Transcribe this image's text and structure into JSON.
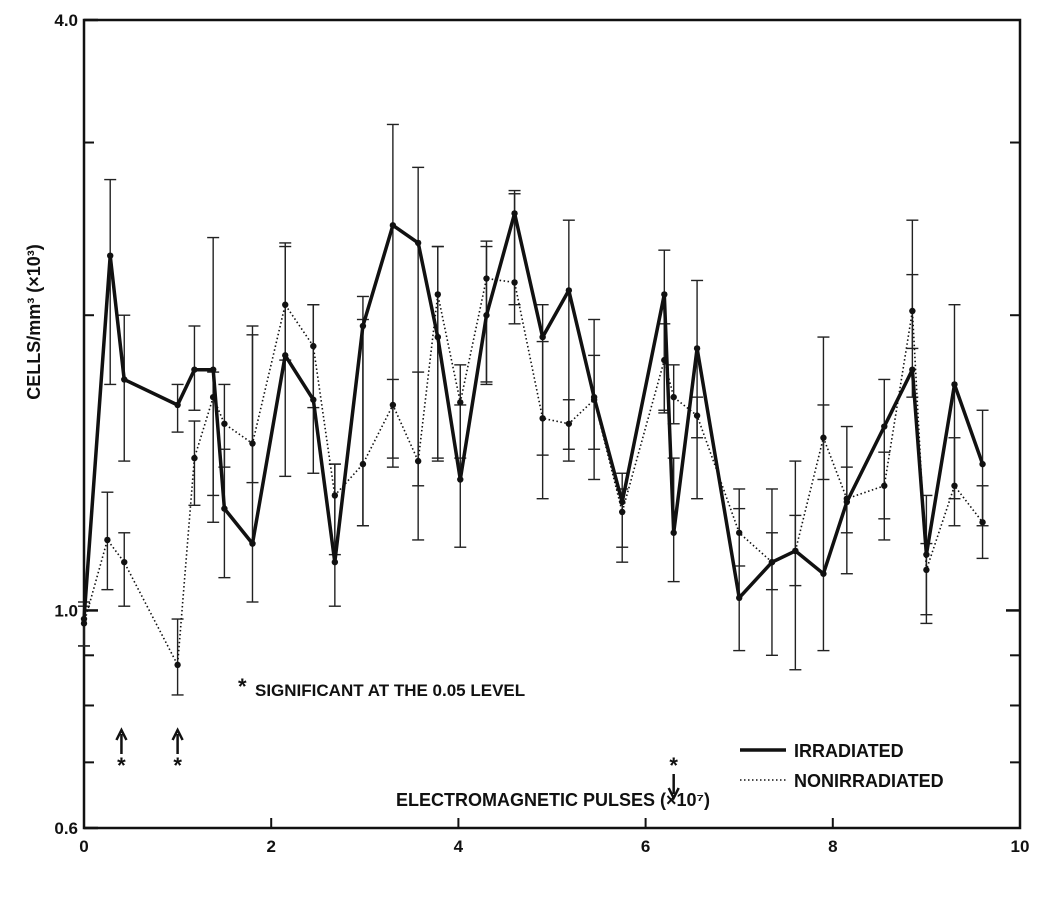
{
  "chart_data": {
    "type": "line",
    "title": "",
    "xlabel": "ELECTROMAGNETIC PULSES (×10⁷)",
    "ylabel": "CELLS/mm³ (×10³)",
    "xlim": [
      0,
      10
    ],
    "ylim": [
      0.6,
      4.0
    ],
    "yscale": "log",
    "x_ticks": [
      "0",
      "2",
      "4",
      "6",
      "8",
      "10"
    ],
    "y_ticks": [
      "4.0",
      "1.0",
      "0.6"
    ],
    "grid": false,
    "legend_position": "bottom-right",
    "annotation": "SIGNIFICANT AT THE 0.05 LEVEL",
    "significance_marks": [
      {
        "x": 0.4,
        "direction": "up"
      },
      {
        "x": 1.0,
        "direction": "up"
      },
      {
        "x": 6.3,
        "direction": "down"
      }
    ],
    "series": [
      {
        "name": "IRRADIATED",
        "style": "solid",
        "points": [
          {
            "x": 0.0,
            "y": 0.98,
            "lo": 0.92,
            "hi": 1.02
          },
          {
            "x": 0.28,
            "y": 2.3,
            "lo": 1.7,
            "hi": 2.75
          },
          {
            "x": 0.43,
            "y": 1.72,
            "lo": 1.42,
            "hi": 2.0
          },
          {
            "x": 1.0,
            "y": 1.62,
            "lo": 1.52,
            "hi": 1.7
          },
          {
            "x": 1.18,
            "y": 1.76,
            "lo": 1.6,
            "hi": 1.95
          },
          {
            "x": 1.38,
            "y": 1.76,
            "lo": 1.23,
            "hi": 2.4
          },
          {
            "x": 1.5,
            "y": 1.27,
            "lo": 1.08,
            "hi": 1.46
          },
          {
            "x": 1.8,
            "y": 1.17,
            "lo": 1.02,
            "hi": 1.91
          },
          {
            "x": 2.15,
            "y": 1.82,
            "lo": 1.37,
            "hi": 2.37
          },
          {
            "x": 2.45,
            "y": 1.64,
            "lo": 1.38,
            "hi": 2.05
          },
          {
            "x": 2.68,
            "y": 1.12,
            "lo": 1.01,
            "hi": 1.41
          },
          {
            "x": 2.98,
            "y": 1.95,
            "lo": 1.22,
            "hi": 2.09
          },
          {
            "x": 3.3,
            "y": 2.47,
            "lo": 1.4,
            "hi": 3.13
          },
          {
            "x": 3.57,
            "y": 2.37,
            "lo": 1.18,
            "hi": 2.83
          },
          {
            "x": 3.78,
            "y": 1.9,
            "lo": 1.43,
            "hi": 2.35
          },
          {
            "x": 4.02,
            "y": 1.36,
            "lo": 1.16,
            "hi": 1.62
          },
          {
            "x": 4.3,
            "y": 2.0,
            "lo": 1.71,
            "hi": 2.35
          },
          {
            "x": 4.6,
            "y": 2.54,
            "lo": 2.05,
            "hi": 2.66
          },
          {
            "x": 4.9,
            "y": 1.9,
            "lo": 1.3,
            "hi": 2.05
          },
          {
            "x": 5.18,
            "y": 2.12,
            "lo": 1.42,
            "hi": 2.5
          },
          {
            "x": 5.45,
            "y": 1.65,
            "lo": 1.36,
            "hi": 1.98
          },
          {
            "x": 5.75,
            "y": 1.29,
            "lo": 1.12,
            "hi": 1.38
          },
          {
            "x": 6.2,
            "y": 2.1,
            "lo": 1.59,
            "hi": 2.33
          },
          {
            "x": 6.3,
            "y": 1.2,
            "lo": 1.07,
            "hi": 1.43
          },
          {
            "x": 6.55,
            "y": 1.85,
            "lo": 1.3,
            "hi": 2.17
          },
          {
            "x": 7.0,
            "y": 1.03,
            "lo": 0.91,
            "hi": 1.33
          },
          {
            "x": 7.35,
            "y": 1.12,
            "lo": 0.9,
            "hi": 1.33
          },
          {
            "x": 7.6,
            "y": 1.15,
            "lo": 0.87,
            "hi": 1.42
          },
          {
            "x": 7.9,
            "y": 1.09,
            "lo": 0.91,
            "hi": 1.9
          },
          {
            "x": 8.15,
            "y": 1.29,
            "lo": 1.09,
            "hi": 1.54
          },
          {
            "x": 8.55,
            "y": 1.54,
            "lo": 1.18,
            "hi": 1.72
          },
          {
            "x": 8.85,
            "y": 1.76,
            "lo": 1.65,
            "hi": 2.5
          },
          {
            "x": 9.0,
            "y": 1.14,
            "lo": 0.97,
            "hi": 1.31
          },
          {
            "x": 9.3,
            "y": 1.7,
            "lo": 1.3,
            "hi": 2.05
          },
          {
            "x": 9.6,
            "y": 1.41,
            "lo": 1.22,
            "hi": 1.6
          }
        ]
      },
      {
        "name": "NONIRRADIATED",
        "style": "dotted",
        "points": [
          {
            "x": 0.0,
            "y": 0.97,
            "lo": 0.92,
            "hi": 1.01
          },
          {
            "x": 0.25,
            "y": 1.18,
            "lo": 1.05,
            "hi": 1.32
          },
          {
            "x": 0.43,
            "y": 1.12,
            "lo": 1.01,
            "hi": 1.2
          },
          {
            "x": 1.0,
            "y": 0.88,
            "lo": 0.82,
            "hi": 0.98
          },
          {
            "x": 1.18,
            "y": 1.43,
            "lo": 1.28,
            "hi": 1.56
          },
          {
            "x": 1.38,
            "y": 1.65,
            "lo": 1.31,
            "hi": 1.75
          },
          {
            "x": 1.5,
            "y": 1.55,
            "lo": 1.4,
            "hi": 1.7
          },
          {
            "x": 1.8,
            "y": 1.48,
            "lo": 1.35,
            "hi": 1.95
          },
          {
            "x": 2.15,
            "y": 2.05,
            "lo": 1.8,
            "hi": 2.35
          },
          {
            "x": 2.45,
            "y": 1.86,
            "lo": 1.61,
            "hi": 2.05
          },
          {
            "x": 2.68,
            "y": 1.31,
            "lo": 1.14,
            "hi": 1.41
          },
          {
            "x": 2.98,
            "y": 1.41,
            "lo": 1.22,
            "hi": 1.98
          },
          {
            "x": 3.3,
            "y": 1.62,
            "lo": 1.43,
            "hi": 1.72
          },
          {
            "x": 3.57,
            "y": 1.42,
            "lo": 1.34,
            "hi": 1.75
          },
          {
            "x": 3.78,
            "y": 2.1,
            "lo": 1.42,
            "hi": 2.35
          },
          {
            "x": 4.02,
            "y": 1.63,
            "lo": 1.43,
            "hi": 1.78
          },
          {
            "x": 4.3,
            "y": 2.18,
            "lo": 1.7,
            "hi": 2.38
          },
          {
            "x": 4.6,
            "y": 2.16,
            "lo": 1.96,
            "hi": 2.68
          },
          {
            "x": 4.9,
            "y": 1.57,
            "lo": 1.44,
            "hi": 1.88
          },
          {
            "x": 5.18,
            "y": 1.55,
            "lo": 1.46,
            "hi": 1.64
          },
          {
            "x": 5.45,
            "y": 1.64,
            "lo": 1.46,
            "hi": 1.82
          },
          {
            "x": 5.75,
            "y": 1.26,
            "lo": 1.16,
            "hi": 1.33
          },
          {
            "x": 6.2,
            "y": 1.8,
            "lo": 1.6,
            "hi": 1.96
          },
          {
            "x": 6.3,
            "y": 1.65,
            "lo": 1.55,
            "hi": 1.78
          },
          {
            "x": 6.55,
            "y": 1.58,
            "lo": 1.5,
            "hi": 1.65
          },
          {
            "x": 7.0,
            "y": 1.2,
            "lo": 1.11,
            "hi": 1.27
          },
          {
            "x": 7.35,
            "y": 1.12,
            "lo": 1.05,
            "hi": 1.2
          },
          {
            "x": 7.6,
            "y": 1.15,
            "lo": 1.06,
            "hi": 1.25
          },
          {
            "x": 7.9,
            "y": 1.5,
            "lo": 1.36,
            "hi": 1.62
          },
          {
            "x": 8.15,
            "y": 1.3,
            "lo": 1.2,
            "hi": 1.4
          },
          {
            "x": 8.55,
            "y": 1.34,
            "lo": 1.24,
            "hi": 1.45
          },
          {
            "x": 8.85,
            "y": 2.02,
            "lo": 1.85,
            "hi": 2.2
          },
          {
            "x": 9.0,
            "y": 1.1,
            "lo": 0.99,
            "hi": 1.17
          },
          {
            "x": 9.3,
            "y": 1.34,
            "lo": 1.22,
            "hi": 1.5
          },
          {
            "x": 9.6,
            "y": 1.23,
            "lo": 1.13,
            "hi": 1.34
          }
        ]
      }
    ]
  }
}
